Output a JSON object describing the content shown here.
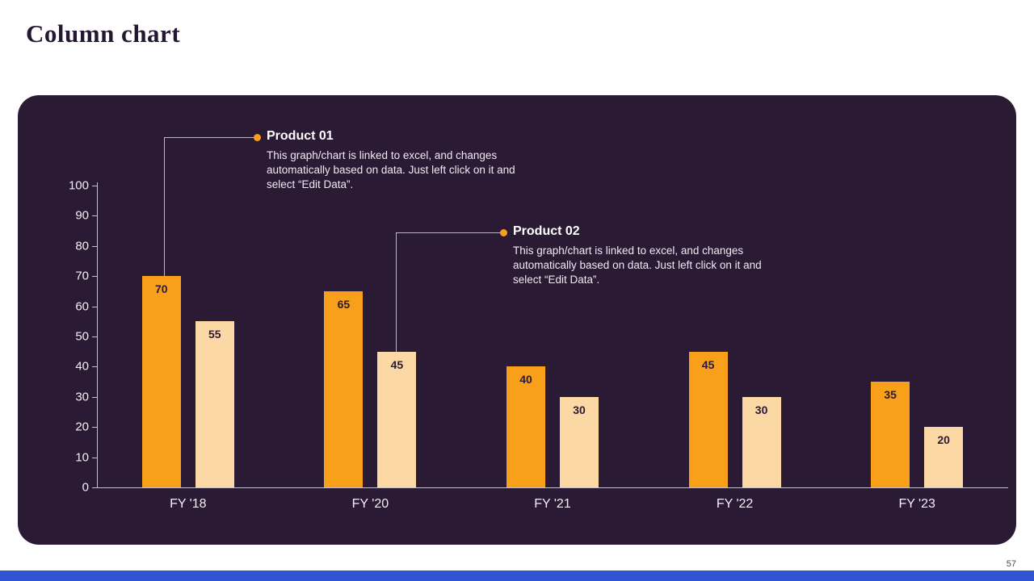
{
  "page": {
    "title": "Column chart",
    "page_number": "57"
  },
  "theme": {
    "panel_bg": "#2B1A33",
    "accent_orange": "#F9A01B",
    "accent_cream": "#FCD8A4",
    "footer_blue": "#2F55D4",
    "axis_color": "#C6BFCF",
    "data_label_color": "#2B1A33"
  },
  "callouts": [
    {
      "title": "Product 01",
      "body": "This graph/chart is linked to excel, and changes automatically based on data. Just left click on it and select “Edit Data”."
    },
    {
      "title": "Product 02",
      "body": "This graph/chart is linked to excel, and changes automatically based on data. Just left click on it and select “Edit Data”."
    }
  ],
  "chart_data": {
    "type": "bar",
    "title": "Column chart",
    "categories": [
      "FY '18",
      "FY '20",
      "FY '21",
      "FY '22",
      "FY '23"
    ],
    "series": [
      {
        "name": "Product 01",
        "color": "#F9A01B",
        "values": [
          70,
          65,
          40,
          45,
          35
        ]
      },
      {
        "name": "Product 02",
        "color": "#FCD8A4",
        "values": [
          55,
          45,
          30,
          30,
          20
        ]
      }
    ],
    "xlabel": "",
    "ylabel": "",
    "ylim": [
      0,
      100
    ],
    "yticks": [
      0,
      10,
      20,
      30,
      40,
      50,
      60,
      70,
      80,
      90,
      100
    ],
    "grid": false,
    "legend_position": "callouts"
  }
}
